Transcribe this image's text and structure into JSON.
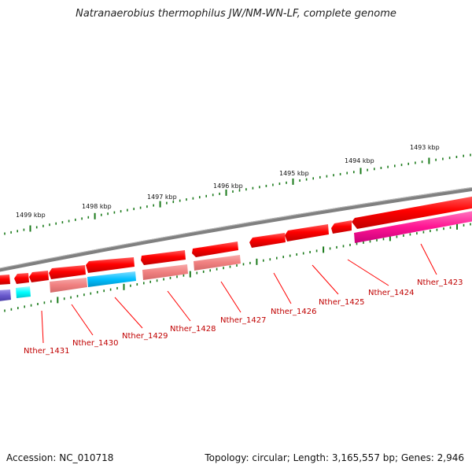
{
  "title": "Natranaerobius thermophilus JW/NM-WN-LF, complete genome",
  "footer": {
    "accession": "Accession: NC_010718",
    "summary": "Topology: circular; Length: 3,165,557 bp; Genes: 2,946"
  },
  "ticks": [
    "1493 kbp",
    "1494 kbp",
    "1495 kbp",
    "1496 kbp",
    "1497 kbp",
    "1498 kbp",
    "1499 kbp"
  ],
  "genes": [
    "Nther_1423",
    "Nther_1424",
    "Nther_1425",
    "Nther_1426",
    "Nther_1427",
    "Nther_1428",
    "Nther_1429",
    "Nther_1430",
    "Nther_1431"
  ],
  "colors": {
    "cds": "#ff0000",
    "cds_light": "#f08080",
    "cog_cyan": "#00bfff",
    "cog_pink": "#ff1493",
    "cog_purple": "#6a5acd",
    "cog_aqua": "#00ffff",
    "backbone": "#808080",
    "tick": "#1a7a1a"
  }
}
